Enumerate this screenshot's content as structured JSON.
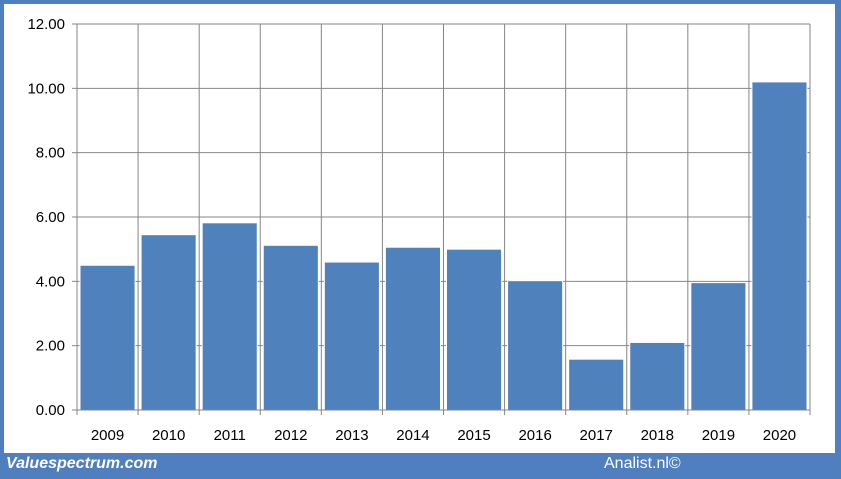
{
  "chart_data": {
    "type": "bar",
    "categories": [
      "2009",
      "2010",
      "2011",
      "2012",
      "2013",
      "2014",
      "2015",
      "2016",
      "2017",
      "2018",
      "2019",
      "2020"
    ],
    "values": [
      4.5,
      5.45,
      5.82,
      5.12,
      4.6,
      5.06,
      5.0,
      4.02,
      1.58,
      2.1,
      3.96,
      10.2
    ],
    "yticks": [
      "0.00",
      "2.00",
      "4.00",
      "6.00",
      "8.00",
      "10.00",
      "12.00"
    ],
    "ylim": [
      0,
      12
    ],
    "grid": true,
    "bar_color": "#4f81bd",
    "grid_color": "#868686"
  },
  "colors": {
    "border": "#4f7fbe",
    "background": "#ffffff",
    "footer_text": "#ffffff"
  },
  "footer": {
    "left_brand": "Valuespectrum.com",
    "right_brand": "Analist.nl©"
  }
}
